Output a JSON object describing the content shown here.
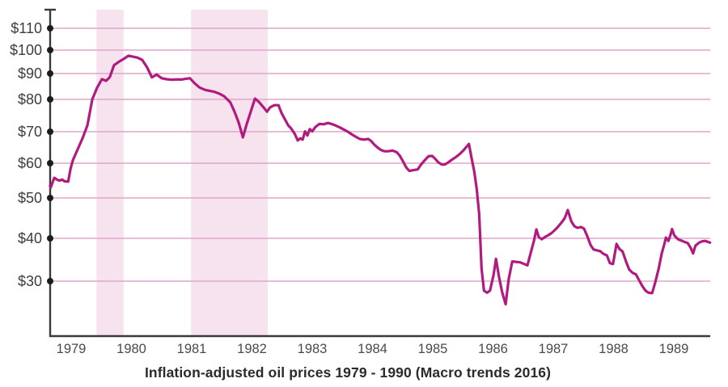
{
  "chart_data": {
    "type": "line",
    "title": "Inflation-adjusted oil prices 1979 - 1990 (Macro trends 2016)",
    "y_axis": {
      "tick_values": [
        110,
        100,
        90,
        80,
        70,
        60,
        50,
        40,
        30
      ],
      "tick_labels": [
        "$110",
        "$100",
        "$90",
        "$80",
        "$70",
        "$60",
        "$50",
        "$40",
        "$30"
      ],
      "scale": "nonlinear-log-like"
    },
    "x_axis": {
      "tick_labels": [
        "1979",
        "1980",
        "1981",
        "1982",
        "1983",
        "1984",
        "1985",
        "1986",
        "1987",
        "1988",
        "1989"
      ],
      "range": [
        1979.15,
        1990.1
      ]
    },
    "shaded_bands": [
      {
        "from": 1979.92,
        "to": 1980.37
      },
      {
        "from": 1981.49,
        "to": 1982.76
      }
    ],
    "colors": {
      "line": "#b11b80",
      "gridline": "#dfa6c9",
      "band": "#f6e3ee",
      "axis": "#3a3a3a",
      "tick_dot": "#1c1c1c",
      "tick_label": "#3d3d3d",
      "year_label": "#4a4a4a",
      "title": "#2b2b2b"
    },
    "series": [
      {
        "name": "Inflation-adjusted oil price (USD)",
        "points": [
          [
            1979.15,
            53.5
          ],
          [
            1979.16,
            53
          ],
          [
            1979.22,
            55.8
          ],
          [
            1979.27,
            55.2
          ],
          [
            1979.31,
            55
          ],
          [
            1979.35,
            55.3
          ],
          [
            1979.39,
            54.8
          ],
          [
            1979.45,
            54.7
          ],
          [
            1979.49,
            58.5
          ],
          [
            1979.53,
            61
          ],
          [
            1979.61,
            64.5
          ],
          [
            1979.69,
            68
          ],
          [
            1979.77,
            72
          ],
          [
            1979.85,
            80
          ],
          [
            1979.93,
            84.5
          ],
          [
            1980.01,
            87.8
          ],
          [
            1980.08,
            87.2
          ],
          [
            1980.14,
            88.6
          ],
          [
            1980.21,
            93.5
          ],
          [
            1980.29,
            95
          ],
          [
            1980.37,
            96.2
          ],
          [
            1980.45,
            97.6
          ],
          [
            1980.52,
            97.2
          ],
          [
            1980.6,
            96.8
          ],
          [
            1980.68,
            95.8
          ],
          [
            1980.76,
            92.6
          ],
          [
            1980.84,
            88.5
          ],
          [
            1980.92,
            89.6
          ],
          [
            1981.0,
            88.2
          ],
          [
            1981.08,
            87.8
          ],
          [
            1981.16,
            87.6
          ],
          [
            1981.25,
            87.7
          ],
          [
            1981.33,
            87.7
          ],
          [
            1981.41,
            88
          ],
          [
            1981.47,
            88.2
          ],
          [
            1981.55,
            86.2
          ],
          [
            1981.63,
            84.6
          ],
          [
            1981.72,
            83.7
          ],
          [
            1981.8,
            83.3
          ],
          [
            1981.88,
            82.9
          ],
          [
            1981.96,
            82.2
          ],
          [
            1982.04,
            81.2
          ],
          [
            1982.09,
            80
          ],
          [
            1982.14,
            79.1
          ],
          [
            1982.21,
            76.2
          ],
          [
            1982.28,
            72.8
          ],
          [
            1982.35,
            68.2
          ],
          [
            1982.41,
            72.2
          ],
          [
            1982.48,
            76.2
          ],
          [
            1982.55,
            80.3
          ],
          [
            1982.61,
            79.3
          ],
          [
            1982.68,
            77.8
          ],
          [
            1982.75,
            76.2
          ],
          [
            1982.8,
            77.5
          ],
          [
            1982.87,
            78.2
          ],
          [
            1982.94,
            78.2
          ],
          [
            1982.99,
            75.8
          ],
          [
            1983.04,
            74.1
          ],
          [
            1983.1,
            72
          ],
          [
            1983.15,
            71
          ],
          [
            1983.21,
            69.3
          ],
          [
            1983.26,
            67.2
          ],
          [
            1983.3,
            67.9
          ],
          [
            1983.34,
            67.5
          ],
          [
            1983.38,
            70.1
          ],
          [
            1983.42,
            68.8
          ],
          [
            1983.46,
            70.8
          ],
          [
            1983.5,
            70.1
          ],
          [
            1983.55,
            71.4
          ],
          [
            1983.62,
            72.4
          ],
          [
            1983.69,
            72.3
          ],
          [
            1983.76,
            72.7
          ],
          [
            1983.82,
            72.4
          ],
          [
            1983.89,
            71.9
          ],
          [
            1983.96,
            71.3
          ],
          [
            1984.02,
            70.7
          ],
          [
            1984.09,
            70
          ],
          [
            1984.16,
            69.1
          ],
          [
            1984.23,
            68.3
          ],
          [
            1984.29,
            67.7
          ],
          [
            1984.36,
            67.5
          ],
          [
            1984.43,
            67.7
          ],
          [
            1984.48,
            67
          ],
          [
            1984.53,
            65.9
          ],
          [
            1984.59,
            64.9
          ],
          [
            1984.64,
            64.2
          ],
          [
            1984.7,
            63.8
          ],
          [
            1984.76,
            63.8
          ],
          [
            1984.83,
            64
          ],
          [
            1984.9,
            63.5
          ],
          [
            1984.95,
            62.5
          ],
          [
            1985.0,
            60.8
          ],
          [
            1985.06,
            58.8
          ],
          [
            1985.11,
            57.8
          ],
          [
            1985.18,
            58
          ],
          [
            1985.25,
            58.2
          ],
          [
            1985.3,
            59.5
          ],
          [
            1985.37,
            61
          ],
          [
            1985.43,
            62.2
          ],
          [
            1985.49,
            62.3
          ],
          [
            1985.54,
            61.4
          ],
          [
            1985.59,
            60.3
          ],
          [
            1985.65,
            59.6
          ],
          [
            1985.7,
            59.6
          ],
          [
            1985.76,
            60.3
          ],
          [
            1985.81,
            61
          ],
          [
            1985.88,
            61.9
          ],
          [
            1985.94,
            62.8
          ],
          [
            1986.0,
            63.9
          ],
          [
            1986.05,
            65
          ],
          [
            1986.1,
            66.1
          ],
          [
            1986.14,
            62
          ],
          [
            1986.19,
            57.5
          ],
          [
            1986.23,
            52.5
          ],
          [
            1986.27,
            46
          ],
          [
            1986.31,
            33
          ],
          [
            1986.35,
            27.8
          ],
          [
            1986.4,
            27.3
          ],
          [
            1986.45,
            27.8
          ],
          [
            1986.51,
            31.5
          ],
          [
            1986.55,
            35.2
          ],
          [
            1986.6,
            31
          ],
          [
            1986.65,
            27.5
          ],
          [
            1986.71,
            24.6
          ],
          [
            1986.76,
            30.5
          ],
          [
            1986.82,
            34.6
          ],
          [
            1986.88,
            34.5
          ],
          [
            1986.95,
            34.4
          ],
          [
            1987.02,
            34
          ],
          [
            1987.07,
            33.7
          ],
          [
            1987.12,
            36.3
          ],
          [
            1987.18,
            39.5
          ],
          [
            1987.22,
            42.2
          ],
          [
            1987.26,
            40.3
          ],
          [
            1987.31,
            39.8
          ],
          [
            1987.37,
            40.4
          ],
          [
            1987.42,
            40.8
          ],
          [
            1987.47,
            41.3
          ],
          [
            1987.53,
            42.1
          ],
          [
            1987.58,
            42.9
          ],
          [
            1987.63,
            43.8
          ],
          [
            1987.69,
            45
          ],
          [
            1987.74,
            47
          ],
          [
            1987.8,
            44.2
          ],
          [
            1987.85,
            43
          ],
          [
            1987.9,
            42.6
          ],
          [
            1987.96,
            42.8
          ],
          [
            1988.01,
            42.4
          ],
          [
            1988.06,
            40.7
          ],
          [
            1988.12,
            38.4
          ],
          [
            1988.17,
            37.4
          ],
          [
            1988.22,
            37.2
          ],
          [
            1988.28,
            37
          ],
          [
            1988.33,
            36.4
          ],
          [
            1988.39,
            36
          ],
          [
            1988.44,
            34.2
          ],
          [
            1988.49,
            34
          ],
          [
            1988.55,
            38.7
          ],
          [
            1988.6,
            37.5
          ],
          [
            1988.65,
            36.9
          ],
          [
            1988.71,
            34.5
          ],
          [
            1988.76,
            32.7
          ],
          [
            1988.82,
            31.9
          ],
          [
            1988.87,
            31.6
          ],
          [
            1988.92,
            30.3
          ],
          [
            1988.98,
            28.8
          ],
          [
            1989.03,
            27.8
          ],
          [
            1989.08,
            27.3
          ],
          [
            1989.14,
            27.2
          ],
          [
            1989.19,
            29.6
          ],
          [
            1989.25,
            33
          ],
          [
            1989.3,
            36.5
          ],
          [
            1989.34,
            38.5
          ],
          [
            1989.37,
            40.2
          ],
          [
            1989.41,
            39.4
          ],
          [
            1989.45,
            41.1
          ],
          [
            1989.47,
            42.3
          ],
          [
            1989.51,
            40.7
          ],
          [
            1989.57,
            39.8
          ],
          [
            1989.62,
            39.5
          ],
          [
            1989.67,
            39.2
          ],
          [
            1989.73,
            38.9
          ],
          [
            1989.78,
            37.8
          ],
          [
            1989.82,
            36.5
          ],
          [
            1989.86,
            38.3
          ],
          [
            1989.92,
            39
          ],
          [
            1989.97,
            39.3
          ],
          [
            1990.02,
            39.4
          ],
          [
            1990.06,
            39.2
          ],
          [
            1990.1,
            39
          ]
        ]
      }
    ]
  }
}
